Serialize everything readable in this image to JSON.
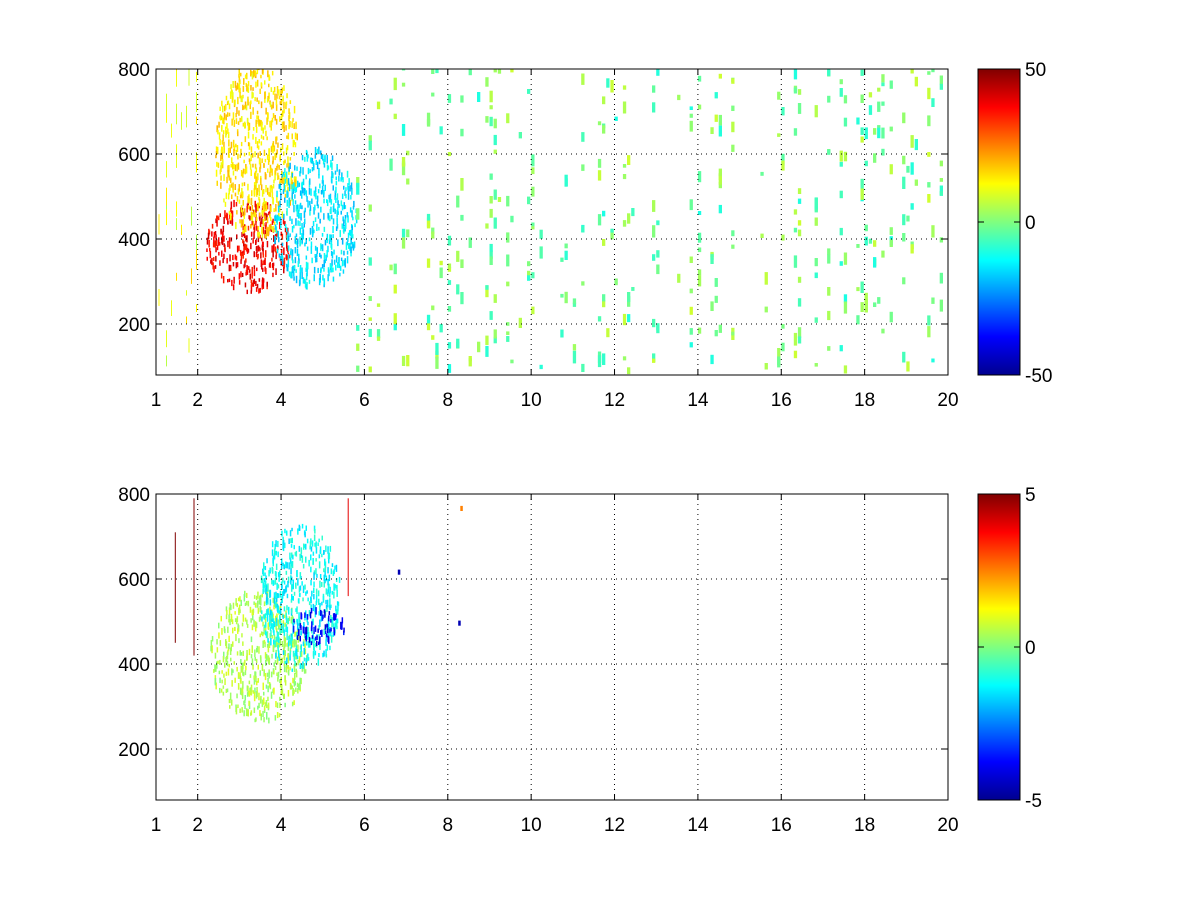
{
  "chart_data": [
    {
      "type": "heatmap",
      "title": "",
      "xlabel": "",
      "ylabel": "",
      "xlim": [
        1,
        20
      ],
      "ylim": [
        80,
        800
      ],
      "x_ticks": [
        {
          "value": 1,
          "label": "1"
        },
        {
          "value": 2,
          "label": "2"
        },
        {
          "value": 4,
          "label": "4"
        },
        {
          "value": 6,
          "label": "6"
        },
        {
          "value": 8,
          "label": "8"
        },
        {
          "value": 10,
          "label": "10"
        },
        {
          "value": 12,
          "label": "12"
        },
        {
          "value": 14,
          "label": "14"
        },
        {
          "value": 16,
          "label": "16"
        },
        {
          "value": 18,
          "label": "18"
        },
        {
          "value": 20,
          "label": "20"
        }
      ],
      "y_ticks": [
        {
          "value": 200,
          "label": "200"
        },
        {
          "value": 400,
          "label": "400"
        },
        {
          "value": 600,
          "label": "600"
        },
        {
          "value": 800,
          "label": "800"
        }
      ],
      "grid": true,
      "colormap": "jet",
      "color_range": [
        -50,
        50
      ],
      "colorbar_ticks": [
        {
          "value": 50,
          "label": "50"
        },
        {
          "value": 0,
          "label": "0"
        },
        {
          "value": -50,
          "label": "-50"
        }
      ],
      "features": [
        {
          "x_range": [
            2.2,
            4.2
          ],
          "y_range": [
            270,
            480
          ],
          "value": 38
        },
        {
          "x_range": [
            2.4,
            4.4
          ],
          "y_range": [
            400,
            800
          ],
          "value": 15
        },
        {
          "x_range": [
            3.8,
            5.8
          ],
          "y_range": [
            280,
            600
          ],
          "value": -15
        }
      ],
      "scatter_columns": {
        "x_range": [
          5.8,
          20
        ],
        "y_range": [
          80,
          800
        ],
        "value_range": [
          -10,
          8
        ]
      }
    },
    {
      "type": "heatmap",
      "title": "",
      "xlabel": "",
      "ylabel": "",
      "xlim": [
        1,
        20
      ],
      "ylim": [
        80,
        800
      ],
      "x_ticks": [
        {
          "value": 1,
          "label": "1"
        },
        {
          "value": 2,
          "label": "2"
        },
        {
          "value": 4,
          "label": "4"
        },
        {
          "value": 6,
          "label": "6"
        },
        {
          "value": 8,
          "label": "8"
        },
        {
          "value": 10,
          "label": "10"
        },
        {
          "value": 12,
          "label": "12"
        },
        {
          "value": 14,
          "label": "14"
        },
        {
          "value": 16,
          "label": "16"
        },
        {
          "value": 18,
          "label": "18"
        },
        {
          "value": 20,
          "label": "20"
        }
      ],
      "y_ticks": [
        {
          "value": 200,
          "label": "200"
        },
        {
          "value": 400,
          "label": "400"
        },
        {
          "value": 600,
          "label": "600"
        },
        {
          "value": 800,
          "label": "800"
        }
      ],
      "grid": true,
      "colormap": "jet",
      "color_range": [
        -5,
        5
      ],
      "colorbar_ticks": [
        {
          "value": 5,
          "label": "5"
        },
        {
          "value": 0,
          "label": "0"
        },
        {
          "value": -5,
          "label": "-5"
        }
      ],
      "features": [
        {
          "x_range": [
            2.3,
            4.6
          ],
          "y_range": [
            260,
            560
          ],
          "value": 0.5
        },
        {
          "x_range": [
            3.5,
            5.4
          ],
          "y_range": [
            380,
            720
          ],
          "value": -1.2
        },
        {
          "x_range": [
            4.2,
            5.5
          ],
          "y_range": [
            440,
            520
          ],
          "value": -3.8
        }
      ],
      "streaks": [
        {
          "x": 1.45,
          "y_range": [
            450,
            710
          ],
          "value": 5
        },
        {
          "x": 1.9,
          "y_range": [
            420,
            790
          ],
          "value": 5
        },
        {
          "x": 5.6,
          "y_range": [
            560,
            790
          ],
          "value": 4
        }
      ],
      "isolated_points": [
        {
          "x": 8.3,
          "y": 760,
          "value": 2.5
        },
        {
          "x": 8.25,
          "y": 490,
          "value": -4.5
        },
        {
          "x": 6.8,
          "y": 610,
          "value": -4.5
        }
      ]
    }
  ]
}
